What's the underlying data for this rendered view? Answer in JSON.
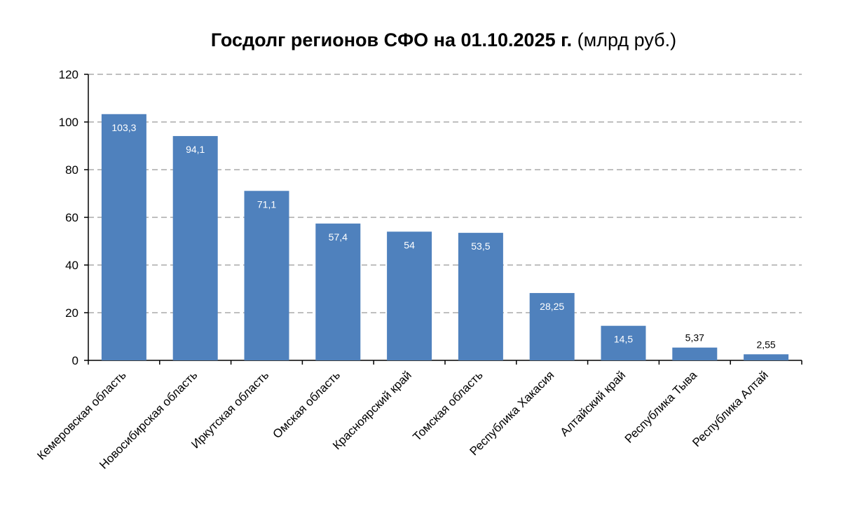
{
  "title_main": "Госдолг регионов СФО на 01.10.2025 г.",
  "title_unit": "(млрд руб.)",
  "colors": {
    "bar": "#4f81bd",
    "label_inside": "#ffffff",
    "label_outside": "#000000"
  },
  "chart_data": {
    "type": "bar",
    "title": "Госдолг регионов СФО на 01.10.2025 г. (млрд руб.)",
    "xlabel": "",
    "ylabel": "",
    "ylim": [
      0,
      120
    ],
    "yticks": [
      0,
      20,
      40,
      60,
      80,
      100,
      120
    ],
    "grid": true,
    "legend": "none",
    "categories": [
      "Кемеровская область",
      "Новосибирская область",
      "Иркутская область",
      "Омская область",
      "Красноярский край",
      "Томская область",
      "Республика Хакасия",
      "Алтайский край",
      "Республика Тыва",
      "Республика Алтай"
    ],
    "values": [
      103.3,
      94.1,
      71.1,
      57.4,
      54,
      53.5,
      28.25,
      14.5,
      5.37,
      2.55
    ],
    "data_labels": [
      "103,3",
      "94,1",
      "71,1",
      "57,4",
      "54",
      "53,5",
      "28,25",
      "14,5",
      "5,37",
      "2,55"
    ]
  }
}
